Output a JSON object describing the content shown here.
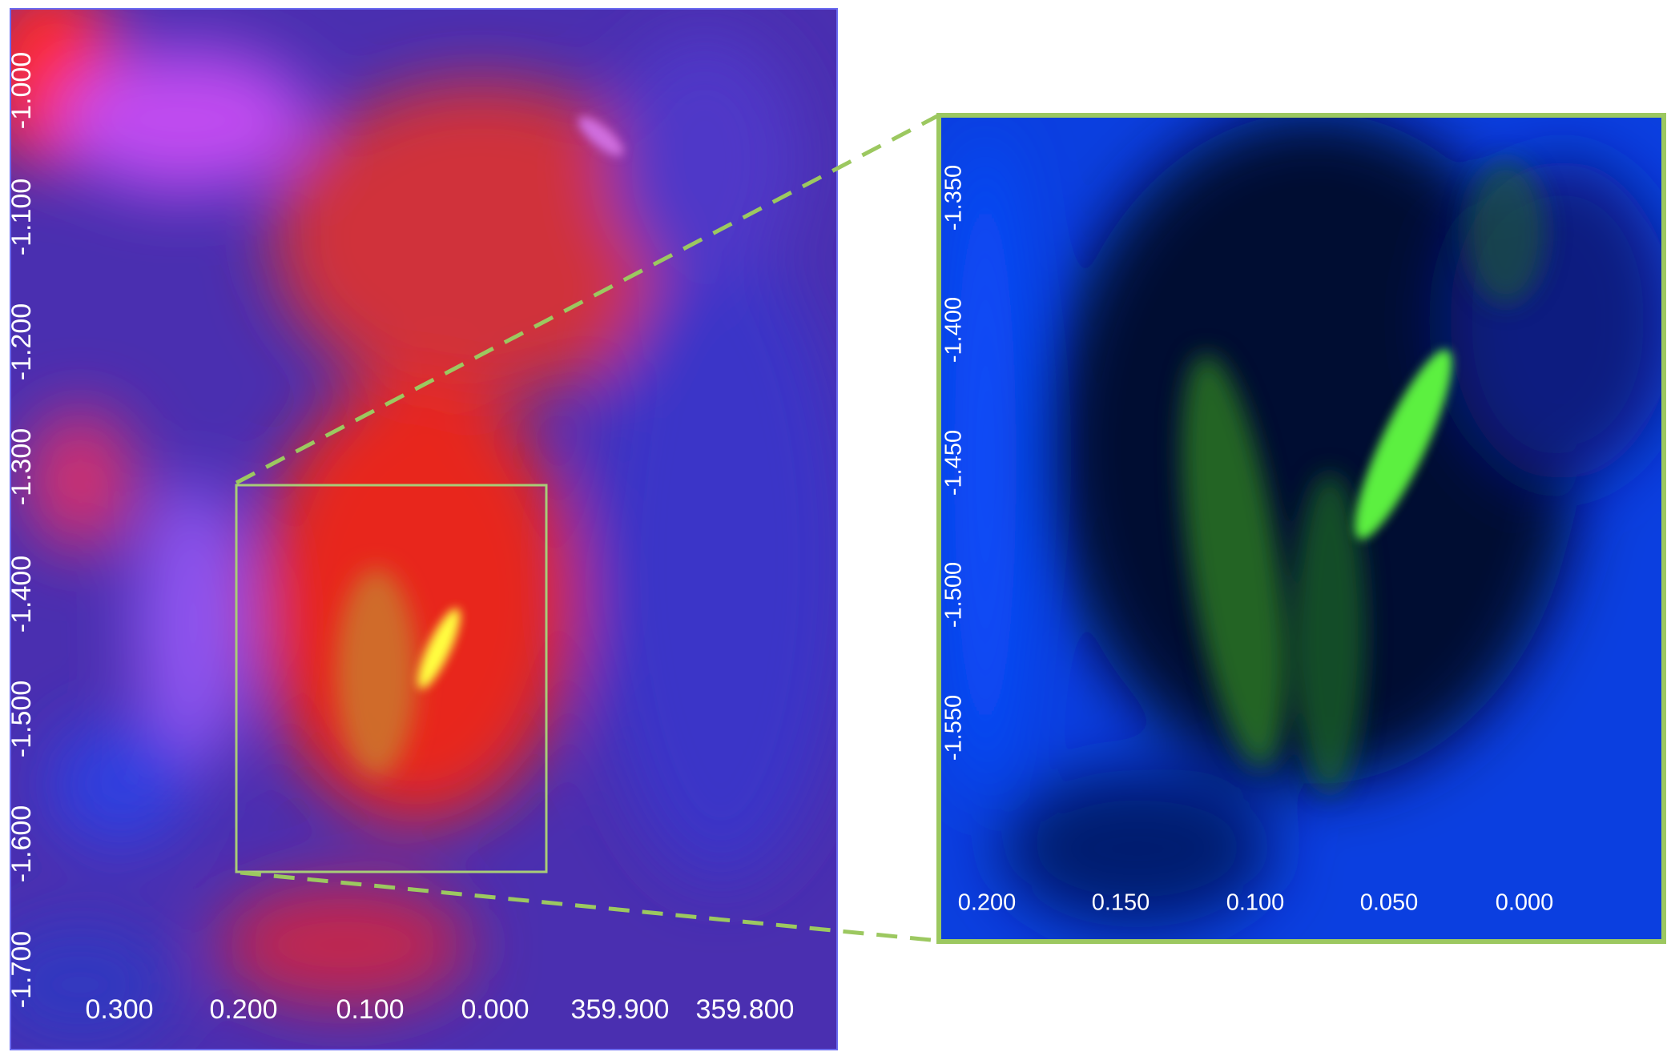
{
  "left_panel": {
    "x_labels": [
      "0.300",
      "0.200",
      "0.100",
      "0.000",
      "359.900",
      "359.800"
    ],
    "y_labels": [
      "-1.000",
      "-1.100",
      "-1.200",
      "-1.300",
      "-1.400",
      "-1.500",
      "-1.600",
      "-1.700"
    ]
  },
  "right_panel": {
    "x_labels": [
      "0.200",
      "0.150",
      "0.100",
      "0.050",
      "0.000"
    ],
    "y_labels": [
      "-1.350",
      "-1.400",
      "-1.450",
      "-1.500",
      "-1.550"
    ]
  }
}
